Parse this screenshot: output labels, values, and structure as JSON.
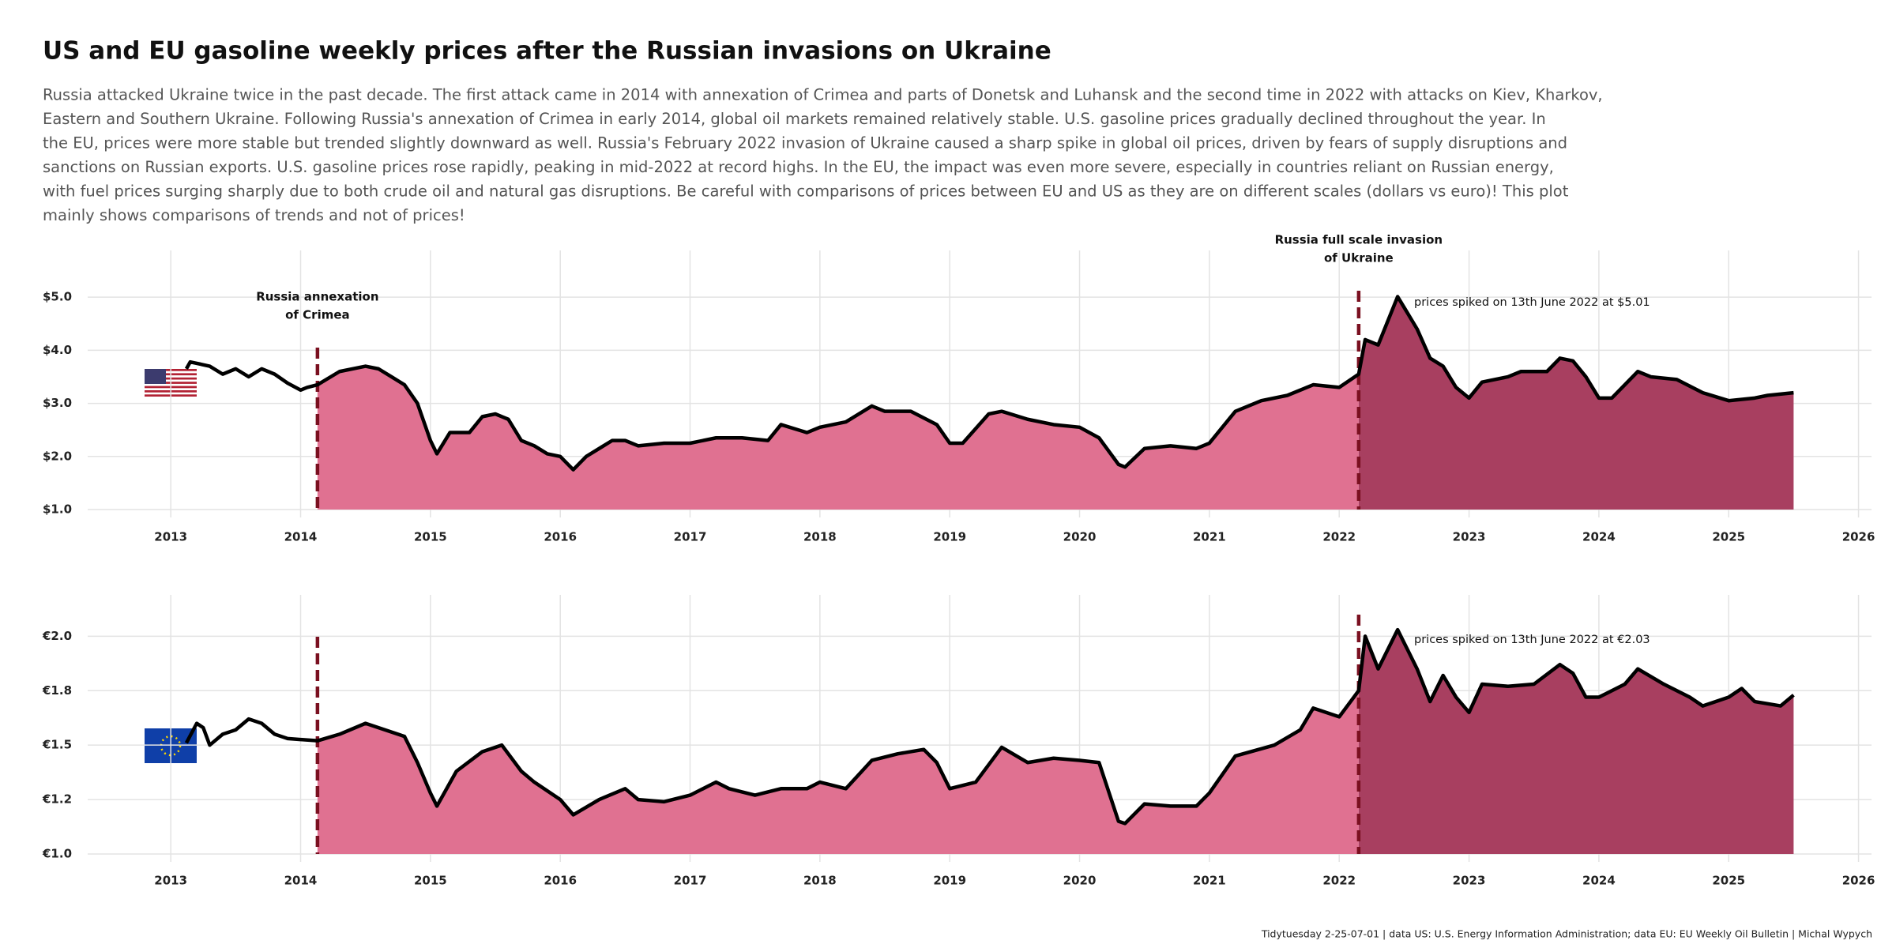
{
  "title": "US and EU gasoline weekly prices after the Russian invasions on Ukraine",
  "subtitle": [
    "Russia attacked Ukraine twice in the past decade. The first attack came in 2014 with annexation of Crimea and parts of Donetsk and Luhansk and the second time in 2022 with attacks on Kiev, Kharkov,",
    "Eastern and Southern Ukraine. Following Russia's annexation of Crimea in early 2014, global oil markets remained relatively stable. U.S. gasoline prices gradually declined throughout the year. In",
    "the EU, prices were more stable but trended slightly downward as well. Russia's February 2022 invasion of Ukraine caused a sharp spike in global oil prices, driven by fears of supply disruptions and",
    "sanctions on Russian exports. U.S. gasoline prices rose rapidly, peaking in mid-2022 at record highs. In the EU, the impact was even more severe, especially in countries reliant on Russian energy,",
    "with fuel prices surging sharply due to both crude oil and natural gas disruptions. Be careful with comparisons of prices between EU and US as they are on different scales (dollars vs euro)! This plot",
    "mainly shows comparisons of trends and not of prices!"
  ],
  "caption": "Tidytuesday 2-25-07-01 | data US: U.S. Energy Information Administration; data EU: EU Weekly Oil Bulletin | Michal Wypych",
  "chart_data": [
    {
      "type": "area",
      "x": [
        2013.12,
        2013.15,
        2013.3,
        2013.4,
        2013.5,
        2013.6,
        2013.7,
        2013.8,
        2013.9,
        2014.0,
        2014.05,
        2014.13,
        2014.3,
        2014.5,
        2014.6,
        2014.7,
        2014.8,
        2014.9,
        2015.0,
        2015.05,
        2015.15,
        2015.3,
        2015.4,
        2015.5,
        2015.6,
        2015.7,
        2015.8,
        2015.9,
        2016.0,
        2016.1,
        2016.2,
        2016.4,
        2016.5,
        2016.6,
        2016.8,
        2017.0,
        2017.2,
        2017.4,
        2017.6,
        2017.7,
        2017.9,
        2018.0,
        2018.2,
        2018.4,
        2018.5,
        2018.7,
        2018.9,
        2019.0,
        2019.1,
        2019.3,
        2019.4,
        2019.6,
        2019.8,
        2020.0,
        2020.15,
        2020.3,
        2020.35,
        2020.5,
        2020.7,
        2020.9,
        2021.0,
        2021.2,
        2021.4,
        2021.6,
        2021.8,
        2022.0,
        2022.15,
        2022.2,
        2022.3,
        2022.45,
        2022.6,
        2022.7,
        2022.8,
        2022.9,
        2023.0,
        2023.1,
        2023.3,
        2023.4,
        2023.6,
        2023.7,
        2023.8,
        2023.9,
        2024.0,
        2024.1,
        2024.3,
        2024.4,
        2024.6,
        2024.8,
        2025.0,
        2025.2,
        2025.3,
        2025.5
      ],
      "values": [
        3.65,
        3.78,
        3.7,
        3.55,
        3.65,
        3.5,
        3.65,
        3.55,
        3.38,
        3.25,
        3.3,
        3.35,
        3.6,
        3.7,
        3.65,
        3.5,
        3.35,
        3.0,
        2.3,
        2.05,
        2.45,
        2.45,
        2.75,
        2.8,
        2.7,
        2.3,
        2.2,
        2.05,
        2.0,
        1.75,
        2.0,
        2.3,
        2.3,
        2.2,
        2.25,
        2.25,
        2.35,
        2.35,
        2.3,
        2.6,
        2.45,
        2.55,
        2.65,
        2.95,
        2.85,
        2.85,
        2.6,
        2.25,
        2.25,
        2.8,
        2.85,
        2.7,
        2.6,
        2.55,
        2.35,
        1.85,
        1.8,
        2.15,
        2.2,
        2.15,
        2.25,
        2.85,
        3.05,
        3.15,
        3.35,
        3.3,
        3.55,
        4.2,
        4.1,
        5.01,
        4.4,
        3.85,
        3.7,
        3.3,
        3.1,
        3.4,
        3.5,
        3.6,
        3.6,
        3.85,
        3.8,
        3.5,
        3.1,
        3.1,
        3.6,
        3.5,
        3.45,
        3.2,
        3.05,
        3.1,
        3.15,
        3.2
      ],
      "xlim": [
        2012.36,
        2026.1
      ],
      "xticks": [
        2013,
        2014,
        2015,
        2016,
        2017,
        2018,
        2019,
        2020,
        2021,
        2022,
        2023,
        2024,
        2025,
        2026
      ],
      "ylim": [
        1,
        5.88
      ],
      "yticks": [
        {
          "value": 1,
          "label": "$1.0"
        },
        {
          "value": 2,
          "label": "$2.0"
        },
        {
          "value": 3,
          "label": "$3.0"
        },
        {
          "value": 4,
          "label": "$4.0"
        },
        {
          "value": 5,
          "label": "$5.0"
        }
      ],
      "grid": true,
      "line_color": "#000000",
      "fill_colors": [
        "#e07191",
        "#a83f60"
      ],
      "event_color": "#7a1020",
      "events": [
        {
          "x": 2014.13,
          "label": [
            "Russia annexation",
            "of Crimea"
          ]
        },
        {
          "x": 2022.15,
          "label": [
            "Russia full scale invasion",
            "of Ukraine"
          ]
        }
      ],
      "annotation": "prices spiked on 13th June 2022 at $5.01",
      "flag": "US"
    },
    {
      "type": "area",
      "x": [
        2013.12,
        2013.2,
        2013.25,
        2013.3,
        2013.4,
        2013.5,
        2013.6,
        2013.7,
        2013.8,
        2013.9,
        2014.13,
        2014.3,
        2014.5,
        2014.7,
        2014.8,
        2014.9,
        2015.0,
        2015.05,
        2015.2,
        2015.4,
        2015.55,
        2015.7,
        2015.8,
        2016.0,
        2016.1,
        2016.3,
        2016.5,
        2016.6,
        2016.8,
        2017.0,
        2017.2,
        2017.3,
        2017.5,
        2017.7,
        2017.9,
        2018.0,
        2018.2,
        2018.4,
        2018.6,
        2018.8,
        2018.9,
        2019.0,
        2019.2,
        2019.4,
        2019.6,
        2019.8,
        2020.0,
        2020.15,
        2020.3,
        2020.35,
        2020.5,
        2020.7,
        2020.9,
        2021.0,
        2021.2,
        2021.5,
        2021.7,
        2021.8,
        2022.0,
        2022.15,
        2022.2,
        2022.3,
        2022.45,
        2022.6,
        2022.7,
        2022.8,
        2022.9,
        2023.0,
        2023.1,
        2023.3,
        2023.5,
        2023.7,
        2023.8,
        2023.9,
        2024.0,
        2024.2,
        2024.3,
        2024.5,
        2024.7,
        2024.8,
        2025.0,
        2025.1,
        2025.2,
        2025.4,
        2025.5
      ],
      "values": [
        1.51,
        1.6,
        1.58,
        1.5,
        1.55,
        1.57,
        1.62,
        1.6,
        1.55,
        1.53,
        1.52,
        1.55,
        1.6,
        1.56,
        1.54,
        1.42,
        1.28,
        1.22,
        1.38,
        1.47,
        1.5,
        1.38,
        1.33,
        1.25,
        1.18,
        1.25,
        1.3,
        1.25,
        1.24,
        1.27,
        1.33,
        1.3,
        1.27,
        1.3,
        1.3,
        1.33,
        1.3,
        1.43,
        1.46,
        1.48,
        1.42,
        1.3,
        1.33,
        1.49,
        1.42,
        1.44,
        1.43,
        1.42,
        1.15,
        1.14,
        1.23,
        1.22,
        1.22,
        1.28,
        1.45,
        1.5,
        1.57,
        1.67,
        1.63,
        1.75,
        2.0,
        1.85,
        2.03,
        1.85,
        1.7,
        1.82,
        1.72,
        1.65,
        1.78,
        1.77,
        1.78,
        1.87,
        1.83,
        1.72,
        1.72,
        1.78,
        1.85,
        1.78,
        1.72,
        1.68,
        1.72,
        1.76,
        1.7,
        1.68,
        1.73
      ],
      "xlim": [
        2012.36,
        2026.1
      ],
      "xticks": [
        2013,
        2014,
        2015,
        2016,
        2017,
        2018,
        2019,
        2020,
        2021,
        2022,
        2023,
        2024,
        2025,
        2026
      ],
      "ylim": [
        1,
        2.19
      ],
      "yticks": [
        {
          "value": 1,
          "label": "€1.0"
        },
        {
          "value": 1.25,
          "label": "€1.2"
        },
        {
          "value": 1.5,
          "label": "€1.5"
        },
        {
          "value": 1.75,
          "label": "€1.8"
        },
        {
          "value": 2,
          "label": "€2.0"
        }
      ],
      "grid": true,
      "line_color": "#000000",
      "fill_colors": [
        "#e07191",
        "#a83f60"
      ],
      "event_color": "#7a1020",
      "event_x": [
        2014.13,
        2022.15
      ],
      "annotation": "prices spiked on 13th June 2022 at €2.03",
      "flag": "EU"
    }
  ]
}
